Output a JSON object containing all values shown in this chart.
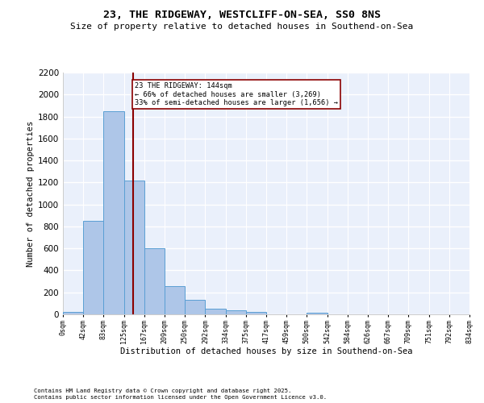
{
  "title1": "23, THE RIDGEWAY, WESTCLIFF-ON-SEA, SS0 8NS",
  "title2": "Size of property relative to detached houses in Southend-on-Sea",
  "xlabel": "Distribution of detached houses by size in Southend-on-Sea",
  "ylabel": "Number of detached properties",
  "bin_edges": [
    0,
    42,
    83,
    125,
    167,
    209,
    250,
    292,
    334,
    375,
    417,
    459,
    500,
    542,
    584,
    626,
    667,
    709,
    751,
    792,
    834
  ],
  "bar_heights": [
    25,
    850,
    1850,
    1220,
    600,
    260,
    135,
    50,
    35,
    25,
    0,
    0,
    15,
    0,
    0,
    0,
    0,
    0,
    0,
    0
  ],
  "bar_color": "#aec6e8",
  "bar_edge_color": "#5a9fd4",
  "vline_x": 144,
  "vline_color": "#8b0000",
  "annotation_line1": "23 THE RIDGEWAY: 144sqm",
  "annotation_line2": "← 66% of detached houses are smaller (3,269)",
  "annotation_line3": "33% of semi-detached houses are larger (1,656) →",
  "annotation_box_color": "white",
  "annotation_box_edge": "#8b0000",
  "ylim": [
    0,
    2200
  ],
  "yticks": [
    0,
    200,
    400,
    600,
    800,
    1000,
    1200,
    1400,
    1600,
    1800,
    2000,
    2200
  ],
  "bg_color": "#eaf0fb",
  "grid_color": "white",
  "footer1": "Contains HM Land Registry data © Crown copyright and database right 2025.",
  "footer2": "Contains public sector information licensed under the Open Government Licence v3.0."
}
